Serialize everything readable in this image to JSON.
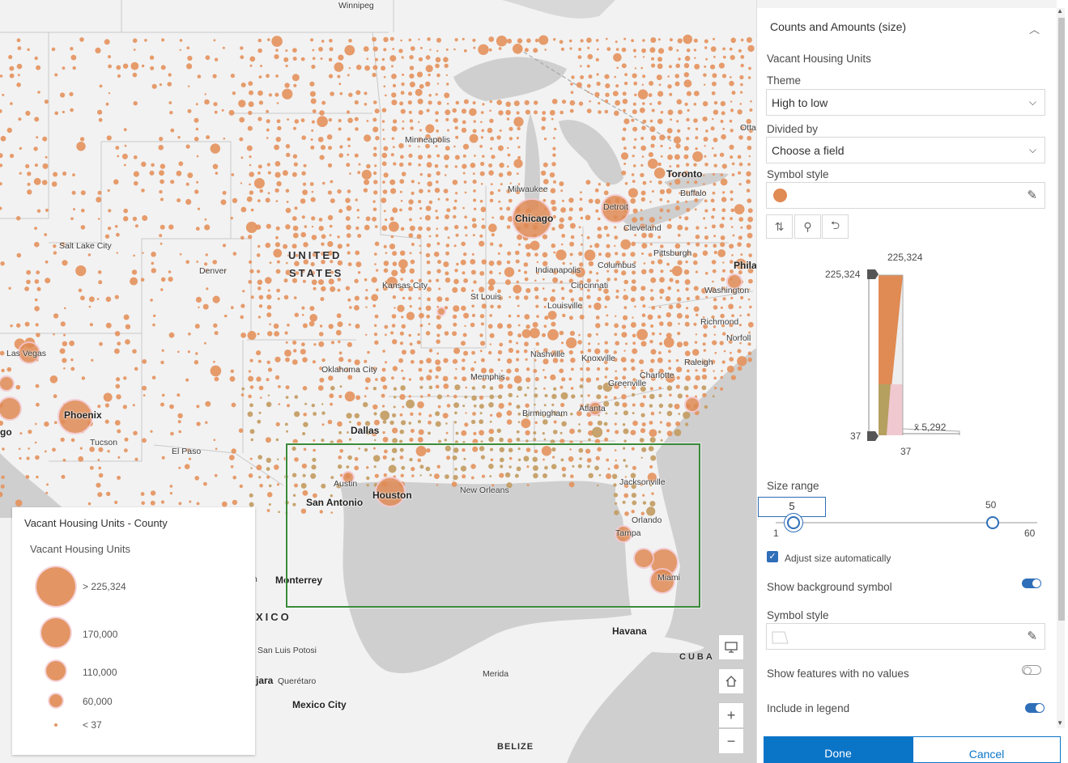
{
  "map": {
    "labels": {
      "winnipeg": "Winnipeg",
      "ottawa": "Otta",
      "minneapolis": "Minneapolis",
      "toronto": "Toronto",
      "buffalo": "Buffalo",
      "milwaukee": "Milwaukee",
      "detroit": "Detroit",
      "chicago": "Chicago",
      "cleveland": "Cleveland",
      "pittsburgh": "Pittsburgh",
      "phila": "Phila",
      "salt_lake": "Salt Lake City",
      "denver": "Denver",
      "united": "UNITED",
      "states": "STATES",
      "kansas_city": "Kansas City",
      "indianapolis": "Indianapolis",
      "columbus": "Columbus",
      "cincinnati": "Cincinnati",
      "st_louis": "St Louis",
      "louisville": "Louisville",
      "washington": "Washington",
      "richmond": "Richmond",
      "norfolk": "Norfoll",
      "las_vegas": "Las Vegas",
      "oklahoma": "Oklahoma City",
      "nashville": "Nashville",
      "knoxville": "Knoxville",
      "charlotte": "Charlotte",
      "raleigh": "Raleigh",
      "memphis": "Memphis",
      "greenville": "Greenville",
      "phoenix": "Phoenix",
      "tucson": "Tucson",
      "ego": "go",
      "el_paso": "El Paso",
      "dallas": "Dallas",
      "birmingham": "Birmingham",
      "atlanta": "Atlanta",
      "austin": "Austin",
      "houston": "Houston",
      "san_antonio": "San Antonio",
      "new_orleans": "New Orleans",
      "jacksonville": "Jacksonville",
      "orlando": "Orlando",
      "tampa": "Tampa",
      "miami": "Miami",
      "monterrey": "Monterrey",
      "mexico_country": "XICO",
      "san_luis": "San Luis Potosi",
      "queretaro": "Querétaro",
      "jara": "jara",
      "mexico_city": "Mexico City",
      "havana": "Havana",
      "cuba": "CUBA",
      "merida": "Merida",
      "belize": "BELIZE",
      "n_fragment": "n"
    }
  },
  "legend": {
    "title": "Vacant Housing Units - County",
    "subtitle": "Vacant Housing Units",
    "items": [
      {
        "label": "> 225,324"
      },
      {
        "label": "170,000"
      },
      {
        "label": "110,000"
      },
      {
        "label": "60,000"
      },
      {
        "label": "< 37"
      }
    ]
  },
  "panel": {
    "section_title": "Counts and Amounts (size)",
    "field_name": "Vacant Housing Units",
    "theme": {
      "label": "Theme",
      "value": "High to low"
    },
    "divided_by": {
      "label": "Divided by",
      "value": "Choose a field"
    },
    "symbol_style_label": "Symbol style",
    "symbol_color": "#e08a54",
    "histogram": {
      "max_top": "225,324",
      "max_left": "225,324",
      "min_left": "37",
      "min_bottom": "37",
      "mean": "x̄ 5,292"
    },
    "size_range": {
      "label": "Size range",
      "min_value": "5",
      "max_value": "50",
      "range_min": "1",
      "range_max": "60",
      "min_fraction": 0.069,
      "max_fraction": 0.831
    },
    "adjust_size_label": "Adjust size automatically",
    "adjust_size_checked": true,
    "show_background": {
      "label": "Show background symbol",
      "on": true
    },
    "bg_symbol_style_label": "Symbol style",
    "show_no_values": {
      "label": "Show features with no values",
      "on": false
    },
    "include_legend": {
      "label": "Include in legend",
      "on": true
    },
    "done_label": "Done",
    "cancel_label": "Cancel"
  }
}
